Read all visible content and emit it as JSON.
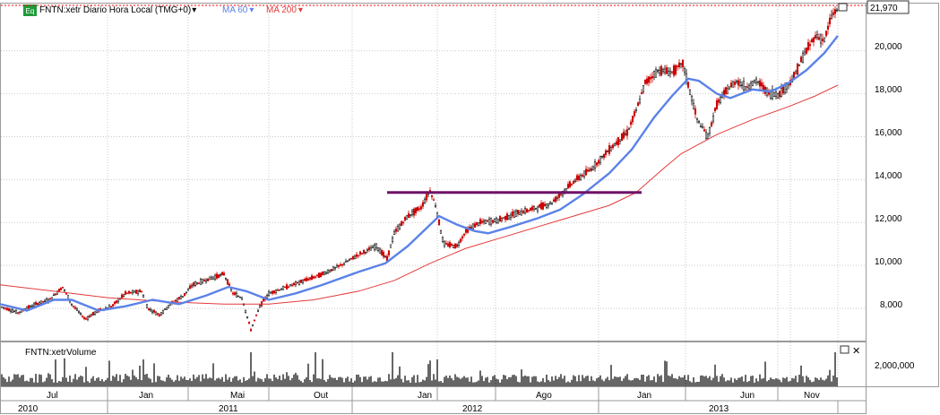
{
  "colors": {
    "ma60": "#5b82e8",
    "ma200": "#e23b3b",
    "resistance": "#6e1167",
    "candle_up": "#000000",
    "candle_down": "#cc0000",
    "grid": "#c9c9c9",
    "accent_badge": "#1f9a3a",
    "last_price_line": "#ff0000"
  },
  "header": {
    "badge": "Eq",
    "symbol_label": "FNTN:xetr Diario Hora Local (TMG+0)",
    "symbol_arrow": "▾",
    "ma60_label": "MA 60",
    "ma60_arrow": "▾",
    "ma200_label": "MA 200",
    "ma200_arrow": "▾"
  },
  "price_panel": {
    "last_price": "21,970",
    "price_ticks": [
      "20,000",
      "18,000",
      "16,000",
      "14,000",
      "12,000",
      "10,000",
      "8,000"
    ]
  },
  "volume_panel": {
    "title": "FNTN:xetrVolume",
    "volume_tick": "2,000,000"
  },
  "time_axis": {
    "months": [
      "Jul",
      "Jan",
      "Mai",
      "Out",
      "Jan",
      "Ago",
      "Jan",
      "Jun",
      "Nov"
    ],
    "years": [
      "2010",
      "2011",
      "2012",
      "2013"
    ]
  },
  "chart_data": {
    "type": "line",
    "ylim": [
      6500,
      22200
    ],
    "series": [
      {
        "name": "FNTN:xetr",
        "points": [
          [
            0,
            8100
          ],
          [
            20,
            7800
          ],
          [
            40,
            8200
          ],
          [
            55,
            8400
          ],
          [
            70,
            9000
          ],
          [
            80,
            8200
          ],
          [
            95,
            7500
          ],
          [
            110,
            7900
          ],
          [
            125,
            8100
          ],
          [
            140,
            8700
          ],
          [
            158,
            8800
          ],
          [
            165,
            8000
          ],
          [
            178,
            7700
          ],
          [
            190,
            8200
          ],
          [
            205,
            8600
          ],
          [
            215,
            9100
          ],
          [
            235,
            9400
          ],
          [
            250,
            9600
          ],
          [
            260,
            8700
          ],
          [
            270,
            8500
          ],
          [
            280,
            7000
          ],
          [
            290,
            8100
          ],
          [
            300,
            8700
          ],
          [
            320,
            9000
          ],
          [
            340,
            9300
          ],
          [
            360,
            9600
          ],
          [
            380,
            10000
          ],
          [
            400,
            10500
          ],
          [
            420,
            10900
          ],
          [
            432,
            10300
          ],
          [
            440,
            11500
          ],
          [
            455,
            12300
          ],
          [
            470,
            12700
          ],
          [
            480,
            13500
          ],
          [
            486,
            12800
          ],
          [
            495,
            11000
          ],
          [
            510,
            10900
          ],
          [
            520,
            11600
          ],
          [
            535,
            12000
          ],
          [
            555,
            12100
          ],
          [
            575,
            12400
          ],
          [
            600,
            12700
          ],
          [
            615,
            12900
          ],
          [
            628,
            13400
          ],
          [
            640,
            13900
          ],
          [
            660,
            14500
          ],
          [
            680,
            15400
          ],
          [
            700,
            16200
          ],
          [
            710,
            17200
          ],
          [
            720,
            18500
          ],
          [
            735,
            19100
          ],
          [
            750,
            19000
          ],
          [
            762,
            19400
          ],
          [
            770,
            18100
          ],
          [
            778,
            16800
          ],
          [
            790,
            16000
          ],
          [
            800,
            17500
          ],
          [
            812,
            18200
          ],
          [
            822,
            18600
          ],
          [
            832,
            18300
          ],
          [
            845,
            18600
          ],
          [
            858,
            18000
          ],
          [
            870,
            18000
          ],
          [
            885,
            18700
          ],
          [
            897,
            19800
          ],
          [
            910,
            20700
          ],
          [
            920,
            20500
          ],
          [
            928,
            21600
          ],
          [
            935,
            22000
          ]
        ]
      },
      {
        "name": "MA 60",
        "points": [
          [
            0,
            8200
          ],
          [
            30,
            7900
          ],
          [
            60,
            8400
          ],
          [
            80,
            8400
          ],
          [
            110,
            7900
          ],
          [
            140,
            8100
          ],
          [
            170,
            8400
          ],
          [
            200,
            8200
          ],
          [
            230,
            8600
          ],
          [
            255,
            9000
          ],
          [
            275,
            8800
          ],
          [
            300,
            8400
          ],
          [
            330,
            8700
          ],
          [
            360,
            9100
          ],
          [
            400,
            9700
          ],
          [
            430,
            10100
          ],
          [
            455,
            10900
          ],
          [
            475,
            11700
          ],
          [
            490,
            12300
          ],
          [
            510,
            11900
          ],
          [
            530,
            11600
          ],
          [
            545,
            11500
          ],
          [
            570,
            11800
          ],
          [
            600,
            12200
          ],
          [
            625,
            12600
          ],
          [
            650,
            13300
          ],
          [
            680,
            14300
          ],
          [
            705,
            15400
          ],
          [
            730,
            16900
          ],
          [
            750,
            17900
          ],
          [
            768,
            18700
          ],
          [
            780,
            18600
          ],
          [
            800,
            18000
          ],
          [
            815,
            17800
          ],
          [
            840,
            18200
          ],
          [
            860,
            18100
          ],
          [
            880,
            18500
          ],
          [
            900,
            19100
          ],
          [
            920,
            19900
          ],
          [
            935,
            20700
          ]
        ]
      },
      {
        "name": "MA 200",
        "points": [
          [
            0,
            9100
          ],
          [
            60,
            8800
          ],
          [
            120,
            8500
          ],
          [
            190,
            8300
          ],
          [
            250,
            8200
          ],
          [
            300,
            8200
          ],
          [
            350,
            8400
          ],
          [
            400,
            8800
          ],
          [
            440,
            9300
          ],
          [
            480,
            10100
          ],
          [
            520,
            10800
          ],
          [
            560,
            11300
          ],
          [
            600,
            11800
          ],
          [
            640,
            12300
          ],
          [
            680,
            12800
          ],
          [
            710,
            13400
          ],
          [
            740,
            14500
          ],
          [
            760,
            15200
          ],
          [
            800,
            16100
          ],
          [
            840,
            16800
          ],
          [
            880,
            17400
          ],
          [
            910,
            17900
          ],
          [
            935,
            18400
          ]
        ]
      }
    ],
    "resistance_level": {
      "value": 13400,
      "from_x": 432,
      "to_x": 716
    }
  }
}
